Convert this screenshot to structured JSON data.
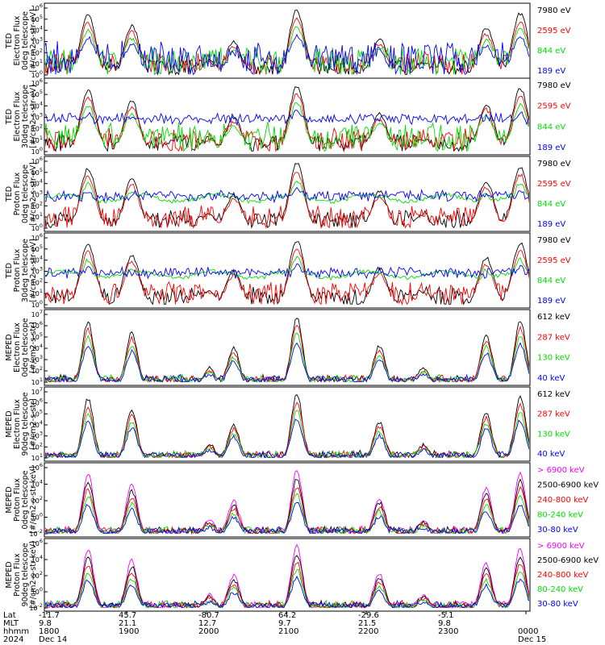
{
  "colors": {
    "blue": "#0000ff",
    "red": "#ff0000",
    "green": "#00dd00",
    "black": "#000000",
    "magenta": "#ff00ff",
    "lightgreen": "#44ee44"
  },
  "chart_data": [
    {
      "type": "line",
      "ylabel": [
        "TED",
        "Electron Flux",
        "0deg telescope",
        "[#/cm2-s-str-eV]"
      ],
      "yscale": "log",
      "ylim": [
        1,
        1000000
      ],
      "yticks": [
        "10^6",
        "10^5",
        "10^4",
        "10^3",
        "10^2",
        "10^1",
        "10^0"
      ],
      "series": [
        {
          "name": "7980 eV",
          "color": "#000000"
        },
        {
          "name": "2595 eV",
          "color": "#ff0000"
        },
        {
          "name": "844 eV",
          "color": "#00dd00"
        },
        {
          "name": "189 eV",
          "color": "#0000ff"
        }
      ],
      "legend_colors": [
        "#000000",
        "#ff0000",
        "#00dd00",
        "#0000ff"
      ]
    },
    {
      "type": "line",
      "ylabel": [
        "TED",
        "Electron Flux",
        "30deg telescope",
        "[#/cm2-s-str-eV]"
      ],
      "yscale": "log",
      "ylim": [
        1,
        1000000
      ],
      "yticks": [
        "10^6",
        "10^5",
        "10^4",
        "10^3",
        "10^2",
        "10^1",
        "10^0"
      ],
      "series": [
        {
          "name": "7980 eV",
          "color": "#000000"
        },
        {
          "name": "2595 eV",
          "color": "#ff0000"
        },
        {
          "name": "844 eV",
          "color": "#00dd00"
        },
        {
          "name": "189 eV",
          "color": "#0000ff"
        }
      ],
      "legend_colors": [
        "#000000",
        "#ff0000",
        "#00dd00",
        "#0000ff"
      ]
    },
    {
      "type": "line",
      "ylabel": [
        "TED",
        "Proton Flux",
        "0deg telescope",
        "[#/cm2-s-str-eV]"
      ],
      "yscale": "log",
      "ylim": [
        1,
        1000000
      ],
      "yticks": [
        "10^6",
        "10^5",
        "10^4",
        "10^3",
        "10^2",
        "10^1",
        "10^0"
      ],
      "series": [
        {
          "name": "7980 eV",
          "color": "#000000"
        },
        {
          "name": "2595 eV",
          "color": "#ff0000"
        },
        {
          "name": "844 eV",
          "color": "#00dd00"
        },
        {
          "name": "189 eV",
          "color": "#0000ff"
        }
      ],
      "legend_colors": [
        "#000000",
        "#ff0000",
        "#00dd00",
        "#0000ff"
      ]
    },
    {
      "type": "line",
      "ylabel": [
        "TED",
        "Proton Flux",
        "30deg telescope",
        "[#/cm2-s-str-eV]"
      ],
      "yscale": "log",
      "ylim": [
        1,
        1000000
      ],
      "yticks": [
        "10^6",
        "10^5",
        "10^4",
        "10^3",
        "10^2",
        "10^1",
        "10^0"
      ],
      "series": [
        {
          "name": "7980 eV",
          "color": "#000000"
        },
        {
          "name": "2595 eV",
          "color": "#ff0000"
        },
        {
          "name": "844 eV",
          "color": "#00dd00"
        },
        {
          "name": "189 eV",
          "color": "#0000ff"
        }
      ],
      "legend_colors": [
        "#000000",
        "#ff0000",
        "#00dd00",
        "#0000ff"
      ]
    },
    {
      "type": "line",
      "ylabel": [
        "MEPED",
        "Electron Flux",
        "0deg telescope",
        "[#/cm2-s-str]"
      ],
      "yscale": "log",
      "ylim": [
        10,
        10000000
      ],
      "yticks": [
        "10^7",
        "10^6",
        "10^5",
        "10^4",
        "10^3",
        "10^2",
        "10^1"
      ],
      "series": [
        {
          "name": "612 keV",
          "color": "#000000"
        },
        {
          "name": "287 keV",
          "color": "#ff0000"
        },
        {
          "name": "130 keV",
          "color": "#00dd00"
        },
        {
          "name": "40 keV",
          "color": "#0000ff"
        }
      ],
      "legend_colors": [
        "#000000",
        "#ff0000",
        "#00dd00",
        "#0000ff"
      ]
    },
    {
      "type": "line",
      "ylabel": [
        "MEPED",
        "Electron Flux",
        "90deg telescope",
        "[#/cm2-s-str]"
      ],
      "yscale": "log",
      "ylim": [
        10,
        10000000
      ],
      "yticks": [
        "10^7",
        "10^6",
        "10^5",
        "10^4",
        "10^3",
        "10^2",
        "10^1"
      ],
      "series": [
        {
          "name": "612 keV",
          "color": "#000000"
        },
        {
          "name": "287 keV",
          "color": "#ff0000"
        },
        {
          "name": "130 keV",
          "color": "#00dd00"
        },
        {
          "name": "40 keV",
          "color": "#0000ff"
        }
      ],
      "legend_colors": [
        "#000000",
        "#ff0000",
        "#00dd00",
        "#0000ff"
      ]
    },
    {
      "type": "line",
      "ylabel": [
        "MEPED",
        "Proton Flux",
        "0deg telescope",
        "[#/cm2-s-str-keV]"
      ],
      "yscale": "log",
      "ylim": [
        0.01,
        1000000
      ],
      "yticks": [
        "10^6",
        "10^4",
        "10^2",
        "10^0",
        "10^-2"
      ],
      "series": [
        {
          "name": "> 6900 keV",
          "color": "#ff00ff"
        },
        {
          "name": "2500-6900 keV",
          "color": "#000000"
        },
        {
          "name": "240-800 keV",
          "color": "#ff0000"
        },
        {
          "name": "80-240 keV",
          "color": "#00dd00"
        },
        {
          "name": "30-80 keV",
          "color": "#0000ff"
        }
      ],
      "legend_colors": [
        "#ff00ff",
        "#000000",
        "#ff0000",
        "#00dd00",
        "#0000ff"
      ]
    },
    {
      "type": "line",
      "ylabel": [
        "MEPED",
        "Proton Flux",
        "90deg telescope",
        "[#/cm2-s-str-keV]"
      ],
      "yscale": "log",
      "ylim": [
        0.01,
        1000000
      ],
      "yticks": [
        "10^6",
        "10^4",
        "10^2",
        "10^0",
        "10^-2"
      ],
      "series": [
        {
          "name": "> 6900 keV",
          "color": "#ff00ff"
        },
        {
          "name": "2500-6900 keV",
          "color": "#000000"
        },
        {
          "name": "240-800 keV",
          "color": "#ff0000"
        },
        {
          "name": "80-240 keV",
          "color": "#00dd00"
        },
        {
          "name": "30-80 keV",
          "color": "#0000ff"
        }
      ],
      "legend_colors": [
        "#ff00ff",
        "#000000",
        "#ff0000",
        "#00dd00",
        "#0000ff"
      ]
    }
  ],
  "footer": {
    "row_labels": [
      "Lat",
      "MLT",
      "hhmm",
      "2024"
    ],
    "columns": [
      {
        "lat": "-11.7",
        "mlt": "9.8",
        "hhmm": "1800",
        "date": "Dec 14"
      },
      {
        "lat": "45.7",
        "mlt": "21.1",
        "hhmm": "1900",
        "date": ""
      },
      {
        "lat": "-80.7",
        "mlt": "12.7",
        "hhmm": "2000",
        "date": ""
      },
      {
        "lat": "64.2",
        "mlt": "9.7",
        "hhmm": "2100",
        "date": ""
      },
      {
        "lat": "-29.6",
        "mlt": "21.5",
        "hhmm": "2200",
        "date": ""
      },
      {
        "lat": "-5.1",
        "mlt": "9.8",
        "hhmm": "2300",
        "date": ""
      },
      {
        "lat": "",
        "mlt": "",
        "hhmm": "0000",
        "date": "Dec 15"
      }
    ]
  }
}
